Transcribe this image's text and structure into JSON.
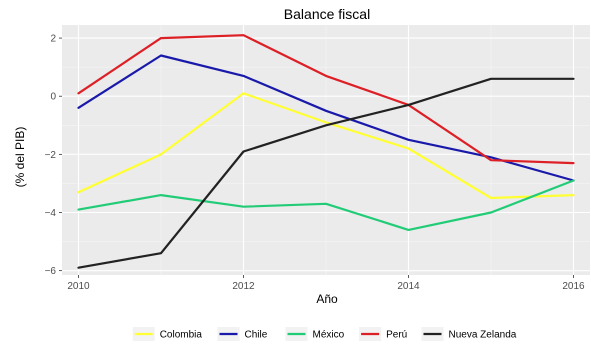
{
  "chart_data": {
    "type": "line",
    "title": "Balance fiscal",
    "xlabel": "Año",
    "ylabel": "(% del PIB)",
    "x": [
      2010,
      2011,
      2012,
      2013,
      2014,
      2015,
      2016
    ],
    "xticks": [
      2010,
      2012,
      2014,
      2016
    ],
    "yticks": [
      -6,
      -4,
      -2,
      0,
      2
    ],
    "xlim": [
      2009.8,
      2016.2
    ],
    "ylim": [
      -6.15,
      2.45
    ],
    "grid": true,
    "legend_position": "bottom",
    "series": [
      {
        "name": "Colombia",
        "color": "#ffff33",
        "values": [
          -3.3,
          -2.0,
          0.1,
          -0.9,
          -1.8,
          -3.5,
          -3.4
        ]
      },
      {
        "name": "Chile",
        "color": "#1a1aaa",
        "values": [
          -0.4,
          1.4,
          0.7,
          -0.5,
          -1.5,
          -2.1,
          -2.9
        ]
      },
      {
        "name": "México",
        "color": "#22cc77",
        "values": [
          -3.9,
          -3.4,
          -3.8,
          -3.7,
          -4.6,
          -4.0,
          -2.9
        ]
      },
      {
        "name": "Perú",
        "color": "#dd1f26",
        "values": [
          0.1,
          2.0,
          2.1,
          0.7,
          -0.3,
          -2.2,
          -2.3
        ]
      },
      {
        "name": "Nueva Zelanda",
        "color": "#222222",
        "values": [
          -5.9,
          -5.4,
          -1.9,
          -1.0,
          -0.3,
          0.6,
          0.6
        ]
      }
    ]
  }
}
